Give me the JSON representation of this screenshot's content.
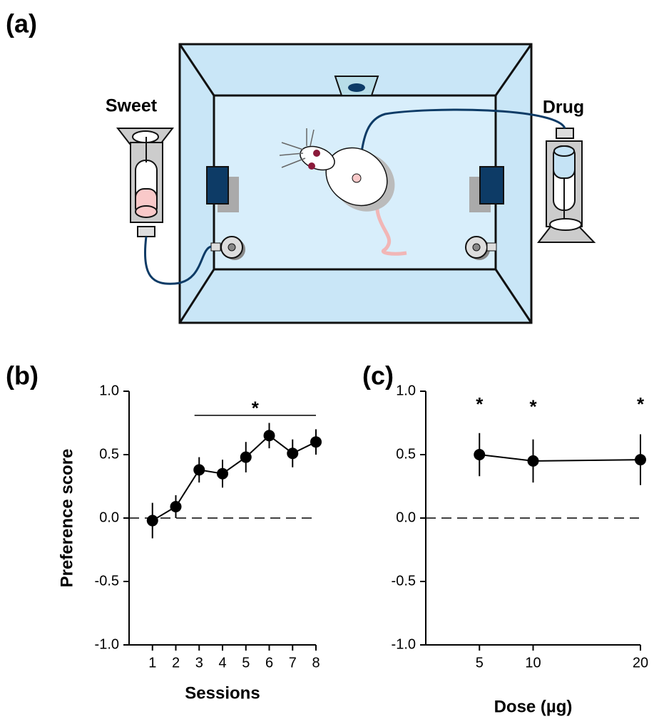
{
  "panel_a": {
    "label": "(a)",
    "left_label": "Sweet",
    "right_label": "Drug"
  },
  "chart_data": [
    {
      "type": "line",
      "panel_label": "(b)",
      "ylabel": "Preference score",
      "xlabel": "Sessions",
      "x": [
        1,
        2,
        3,
        4,
        5,
        6,
        7,
        8
      ],
      "xlim": [
        0,
        8
      ],
      "xticks": [
        1,
        2,
        3,
        4,
        5,
        6,
        7,
        8
      ],
      "series": [
        {
          "color": "#000000",
          "values": [
            -0.02,
            0.09,
            0.38,
            0.35,
            0.48,
            0.65,
            0.51,
            0.6
          ],
          "errors": [
            0.14,
            0.09,
            0.1,
            0.11,
            0.12,
            0.1,
            0.11,
            0.1
          ]
        }
      ],
      "ylim": [
        -1,
        1
      ],
      "yticks": [
        {
          "value": 1,
          "label": "1.0"
        },
        0.5,
        {
          "value": 0,
          "label": "0.0"
        },
        -0.5,
        {
          "value": -1,
          "label": "-1.0"
        }
      ],
      "annotations": [
        {
          "label": "*",
          "x": [
            2.8,
            8
          ],
          "y": 0.81
        }
      ]
    },
    {
      "type": "line",
      "panel_label": "(c)",
      "xlabel": "Dose (µg)",
      "x": [
        5,
        10,
        20
      ],
      "xlim": [
        0,
        20
      ],
      "xticks": [
        5,
        10,
        20
      ],
      "series": [
        {
          "color": "#000000",
          "values": [
            0.5,
            0.45,
            0.46
          ],
          "errors": [
            0.17,
            0.17,
            0.2
          ]
        }
      ],
      "ylim": [
        -1,
        1
      ],
      "yticks": [
        {
          "value": 1,
          "label": "1.0"
        },
        0.5,
        {
          "value": 0,
          "label": "0.0"
        },
        -0.5,
        {
          "value": -1,
          "label": "-1.0"
        }
      ],
      "annotations": [
        {
          "label": "*",
          "x": 5,
          "y": 0.92
        },
        {
          "label": "*",
          "x": 10,
          "y": 0.9
        },
        {
          "label": "*",
          "x": 20,
          "y": 0.92
        }
      ]
    }
  ]
}
